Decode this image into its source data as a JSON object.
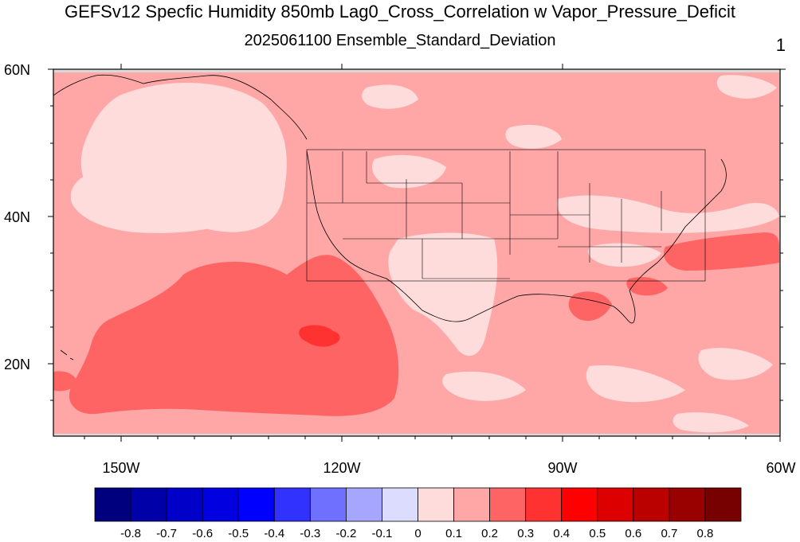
{
  "title": "GEFSv12 Specfic Humidity 850mb Lag0_Cross_Correlation w Vapor_Pressure_Deficit",
  "subtitle": "2025061100 Ensemble_Standard_Deviation",
  "corner_label": "1",
  "lat_labels": [
    "60N",
    "40N",
    "20N"
  ],
  "lon_labels": [
    "150W",
    "120W",
    "90W",
    "60W"
  ],
  "colorbar": {
    "colors": [
      "#00007f",
      "#0000a8",
      "#0000c8",
      "#0000e0",
      "#0000ff",
      "#3232ff",
      "#7070ff",
      "#a6a6ff",
      "#dcdcff",
      "#ffdcdc",
      "#ffa6a6",
      "#ff6464",
      "#ff3232",
      "#ff0000",
      "#dd0000",
      "#bb0000",
      "#990000",
      "#770000"
    ],
    "labels": [
      "-0.8",
      "-0.7",
      "-0.6",
      "-0.5",
      "-0.4",
      "-0.3",
      "-0.2",
      "-0.1",
      "0",
      "0.1",
      "0.2",
      "0.3",
      "0.4",
      "0.5",
      "0.6",
      "0.7",
      "0.8"
    ]
  },
  "map_colors": {
    "base": "#ffa6a6",
    "light": "#ffdcdc",
    "medium": "#ff6464",
    "strong": "#ff3232",
    "missing": "#d9d9d9"
  }
}
